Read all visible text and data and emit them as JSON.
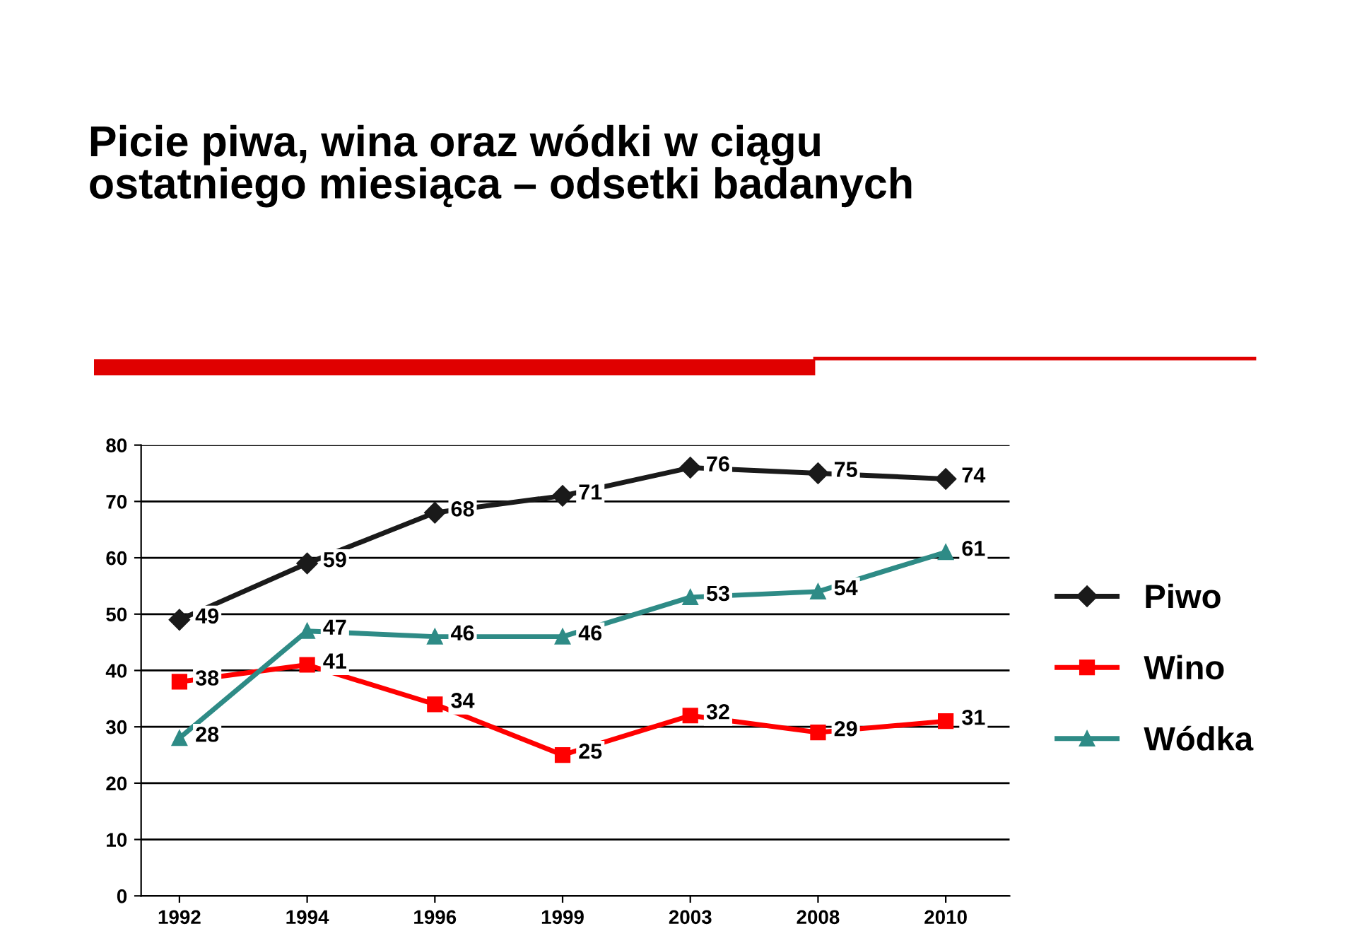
{
  "chart_data": {
    "type": "line",
    "title": "Picie piwa, wina oraz wódki w ciągu\nostatniego miesiąca – odsetki badanych",
    "categories": [
      "1992",
      "1994",
      "1996",
      "1999",
      "2003",
      "2008",
      "2010"
    ],
    "series": [
      {
        "name": "Piwo",
        "color": "#1a1a1a",
        "marker": "diamond",
        "values": [
          49,
          59,
          68,
          71,
          76,
          75,
          74
        ]
      },
      {
        "name": "Wino",
        "color": "#ff0000",
        "marker": "square",
        "values": [
          38,
          41,
          34,
          25,
          32,
          29,
          31
        ]
      },
      {
        "name": "Wódka",
        "color": "#2e8b86",
        "marker": "triangle",
        "values": [
          28,
          47,
          46,
          46,
          53,
          54,
          61
        ]
      }
    ],
    "ylim": [
      0,
      80
    ],
    "yticks": [
      0,
      10,
      20,
      30,
      40,
      50,
      60,
      70,
      80
    ],
    "grid": "y",
    "legend": "right",
    "data_labels": true,
    "line_style": "solid"
  }
}
